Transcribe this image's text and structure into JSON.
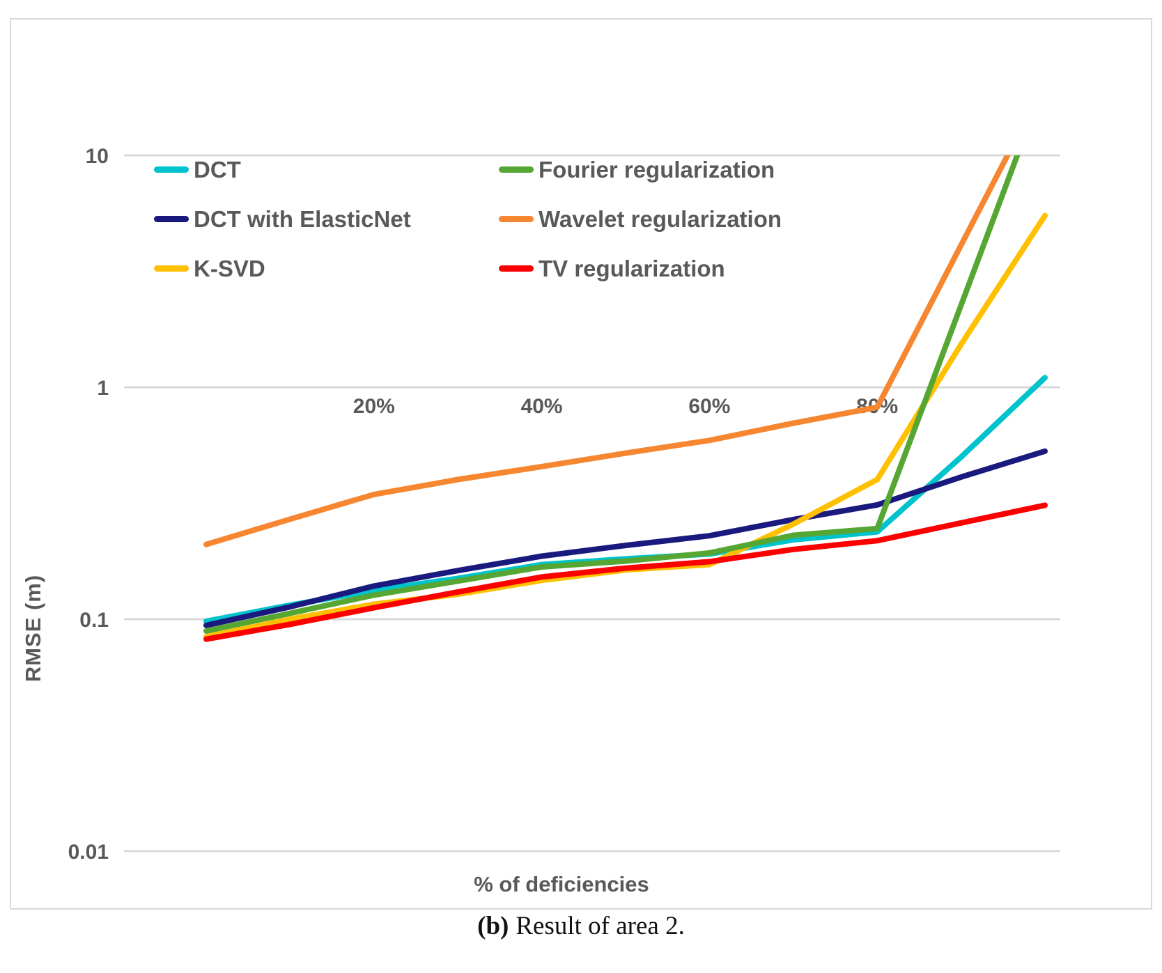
{
  "figure": {
    "caption_prefix": "(b)",
    "caption_text": "Result of area 2."
  },
  "colors": {
    "gridline": "#d9d9d9",
    "panel_border": "#d9d9d9",
    "tick_text": "#595959",
    "legend_text": "#58595b",
    "caption_text": "#111111"
  },
  "legend": {
    "items": [
      {
        "label": "DCT",
        "color": "#00c3cc"
      },
      {
        "label": "DCT with ElasticNet",
        "color": "#19197e"
      },
      {
        "label": "K-SVD",
        "color": "#ffc002"
      },
      {
        "label": "Fourier regularization",
        "color": "#55a633"
      },
      {
        "label": "Wavelet regularization",
        "color": "#f68630"
      },
      {
        "label": "TV regularization",
        "color": "#fc0000"
      }
    ]
  },
  "chart_data": {
    "type": "line",
    "title": "",
    "xlabel": "% of deficiencies",
    "ylabel": "RMSE (m)",
    "y_scale": "log",
    "ylim": [
      0.01,
      10
    ],
    "y_ticks": [
      10,
      1,
      0.1,
      0.01
    ],
    "y_tick_labels": [
      "10",
      "1",
      "0.1",
      "0.01"
    ],
    "x_tick_labels_shown": [
      "20%",
      "40%",
      "60%",
      "80%"
    ],
    "x_tick_positions_percent": [
      20,
      40,
      60,
      80
    ],
    "categories_percent": [
      0,
      10,
      20,
      30,
      40,
      50,
      60,
      70,
      80,
      90,
      100
    ],
    "grid": "horizontal gridlines only",
    "legend_position": "top-left inside plot, two columns",
    "series": [
      {
        "name": "DCT",
        "color": "#00c3cc",
        "values": [
          0.098,
          0.115,
          0.133,
          0.15,
          0.172,
          0.182,
          0.191,
          0.22,
          0.238,
          0.5,
          1.1
        ]
      },
      {
        "name": "DCT with ElasticNet",
        "color": "#19197e",
        "values": [
          0.094,
          0.113,
          0.139,
          0.162,
          0.187,
          0.208,
          0.229,
          0.269,
          0.311,
          0.41,
          0.53
        ]
      },
      {
        "name": "K-SVD",
        "color": "#ffc002",
        "values": [
          0.084,
          0.1,
          0.116,
          0.128,
          0.147,
          0.163,
          0.172,
          0.257,
          0.4,
          1.53,
          5.5
        ]
      },
      {
        "name": "Fourier regularization",
        "color": "#55a633",
        "values": [
          0.089,
          0.106,
          0.127,
          0.146,
          0.168,
          0.178,
          0.193,
          0.23,
          0.246,
          2.26,
          20.8
        ]
      },
      {
        "name": "Wavelet regularization",
        "color": "#f68630",
        "values": [
          0.21,
          0.27,
          0.345,
          0.4,
          0.455,
          0.52,
          0.59,
          0.7,
          0.82,
          4.1,
          20.5
        ]
      },
      {
        "name": "TV regularization",
        "color": "#fc0000",
        "values": [
          0.082,
          0.095,
          0.112,
          0.131,
          0.152,
          0.166,
          0.177,
          0.2,
          0.218,
          0.26,
          0.31
        ]
      }
    ],
    "note": "Wavelet and Fourier values at 90-100% exceed the axis maximum of 10 and the lines are clipped at the top gridline."
  }
}
